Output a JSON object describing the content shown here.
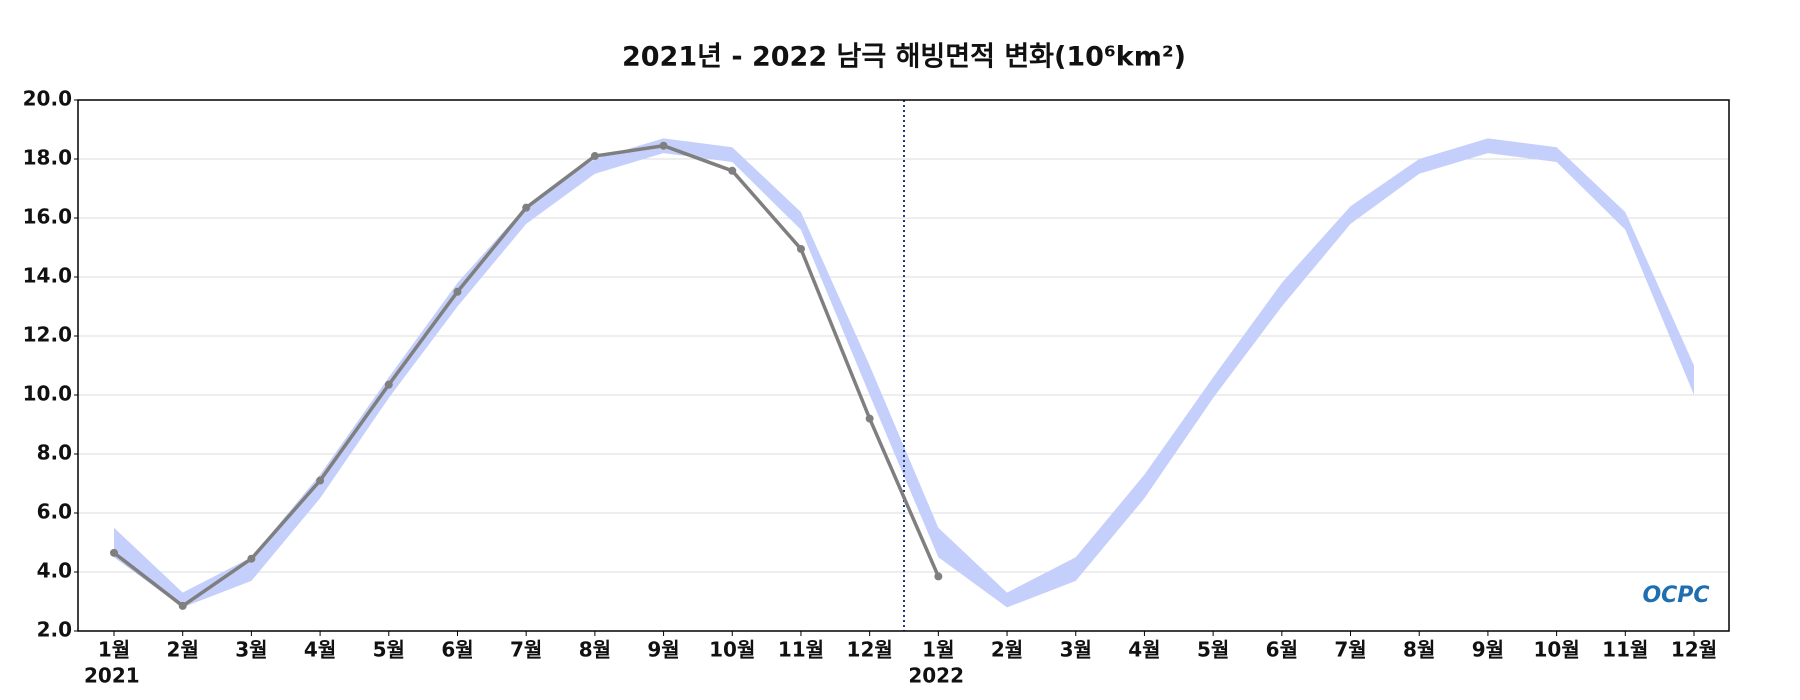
{
  "chart_data": {
    "type": "line",
    "title": "2021년 - 2022 남극 해빙면적 변화(10⁶km²)",
    "categories": [
      "1월",
      "2월",
      "3월",
      "4월",
      "5월",
      "6월",
      "7월",
      "8월",
      "9월",
      "10월",
      "11월",
      "12월",
      "1월",
      "2월",
      "3월",
      "4월",
      "5월",
      "6월",
      "7월",
      "8월",
      "9월",
      "10월",
      "11월",
      "12월"
    ],
    "years": [
      "2021",
      "2022"
    ],
    "series": [
      {
        "color": "#7f7f7f",
        "values": [
          4.65,
          2.85,
          4.45,
          7.1,
          10.35,
          13.5,
          16.35,
          18.1,
          18.45,
          17.6,
          14.95,
          9.2,
          3.85,
          null,
          null,
          null,
          null,
          null,
          null,
          null,
          null,
          null,
          null,
          null
        ]
      }
    ],
    "band": {
      "color": "#c5cffb",
      "lower": [
        4.5,
        2.8,
        3.7,
        6.5,
        9.9,
        13.0,
        15.8,
        17.5,
        18.2,
        17.9,
        15.6,
        10.0,
        4.5,
        2.8,
        3.7,
        6.5,
        9.9,
        13.0,
        15.8,
        17.5,
        18.2,
        17.9,
        15.6,
        10.0
      ],
      "upper": [
        5.5,
        3.3,
        4.5,
        7.3,
        10.6,
        13.8,
        16.4,
        18.0,
        18.7,
        18.4,
        16.2,
        11.0,
        5.5,
        3.3,
        4.5,
        7.3,
        10.6,
        13.8,
        16.4,
        18.0,
        18.7,
        18.4,
        16.2,
        11.0
      ]
    },
    "ylim": [
      2,
      20
    ],
    "yticks": [
      {
        "value": 2,
        "label": "2.0"
      },
      {
        "value": 4,
        "label": "4.0"
      },
      {
        "value": 6,
        "label": "6.0"
      },
      {
        "value": 8,
        "label": "8.0"
      },
      {
        "value": 10,
        "label": "10.0"
      },
      {
        "value": 12,
        "label": "12.0"
      },
      {
        "value": 14,
        "label": "14.0"
      },
      {
        "value": 16,
        "label": "16.0"
      },
      {
        "value": 18,
        "label": "18.0"
      },
      {
        "value": 20,
        "label": "20.0"
      }
    ],
    "grid": true,
    "watermark": "OCPC"
  }
}
